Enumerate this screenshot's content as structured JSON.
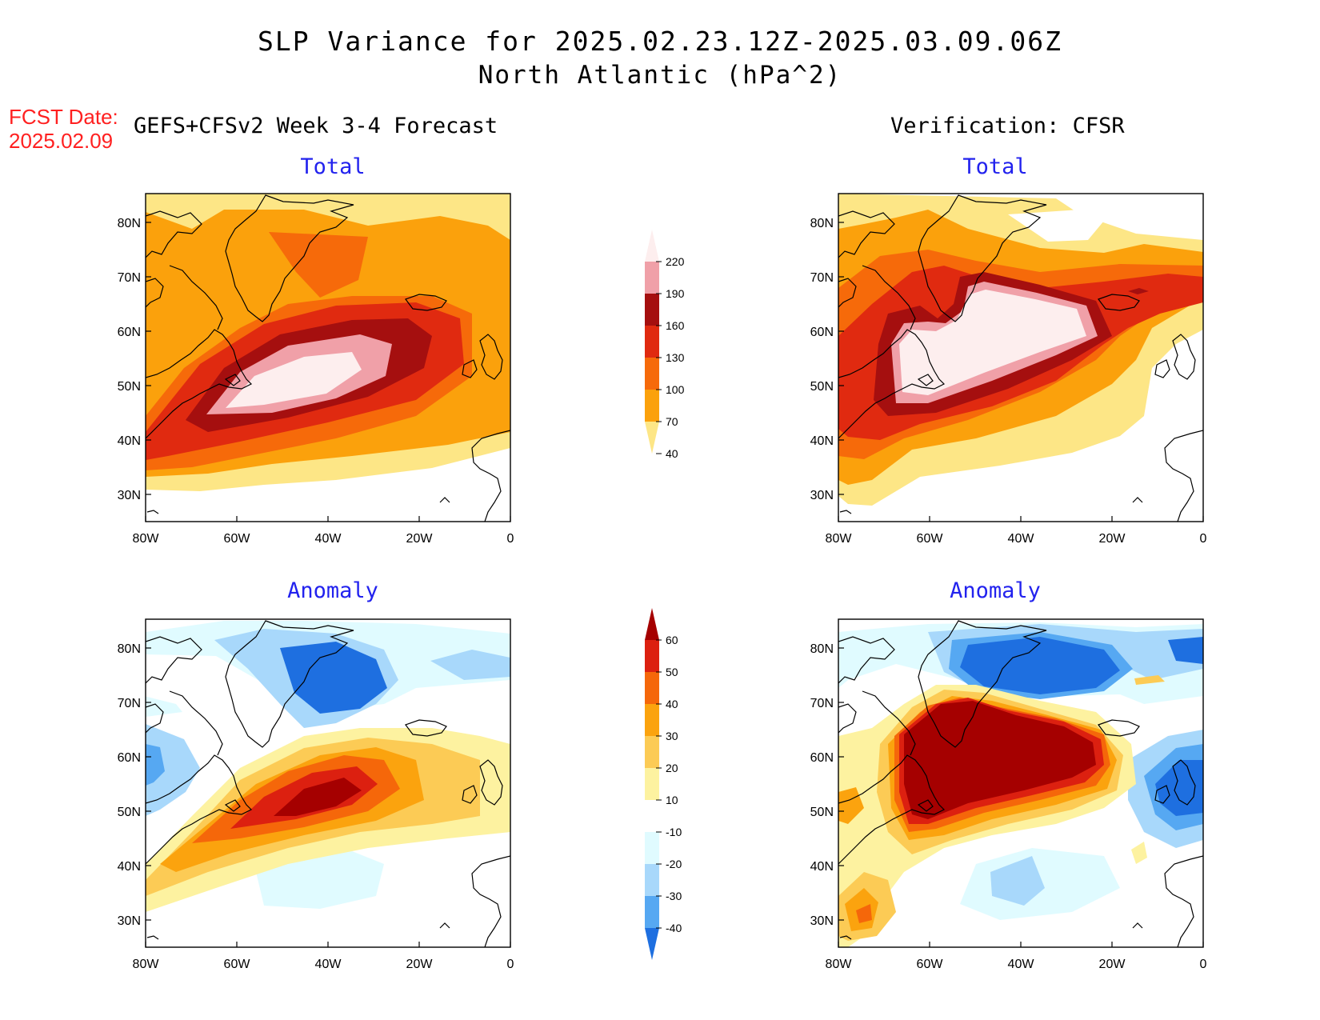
{
  "title": {
    "line1": "SLP Variance for 2025.02.23.12Z-2025.03.09.06Z",
    "line2": "North Atlantic (hPa^2)"
  },
  "fcst": {
    "label": "FCST Date:",
    "date": "2025.02.09"
  },
  "left_header": "GEFS+CFSv2 Week 3-4 Forecast",
  "right_header": "Verification: CFSR",
  "panels": {
    "fc_total": "Total",
    "vf_total": "Total",
    "fc_anom": "Anomaly",
    "vf_anom": "Anomaly"
  },
  "axes": {
    "lat_labels": [
      "80N",
      "70N",
      "60N",
      "50N",
      "40N",
      "30N"
    ],
    "lon_labels": [
      "80W",
      "60W",
      "40W",
      "20W",
      "0"
    ]
  },
  "colorbars": {
    "total": {
      "labels": [
        "220",
        "190",
        "160",
        "130",
        "100",
        "70",
        "40"
      ],
      "colors": [
        "#fdeeee",
        "#f0a0a8",
        "#a50f0f",
        "#e02a10",
        "#f66a0a",
        "#fba10c",
        "#fde686"
      ]
    },
    "anomaly": {
      "labels": [
        "60",
        "50",
        "40",
        "30",
        "20",
        "10",
        "-10",
        "-20",
        "-30",
        "-40"
      ],
      "colors": [
        "#a50000",
        "#dc2010",
        "#f5670a",
        "#fba30e",
        "#fccb55",
        "#fdf2a0",
        "#ffffff",
        "#e0fbff",
        "#a8d8fb",
        "#56a8f2",
        "#1e6fe0"
      ]
    }
  },
  "colors": {
    "title_blue": "#2222ee",
    "fcst_red": "#ff2020"
  }
}
